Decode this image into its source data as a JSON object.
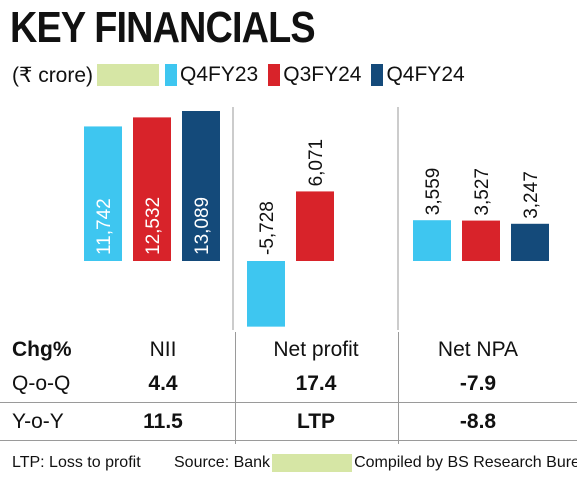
{
  "header": {
    "title": "KEY FINANCIALS",
    "unit": "(₹ crore)"
  },
  "colors": {
    "Q4FY23": "#3ec6f0",
    "Q3FY24": "#d8232a",
    "Q4FY24": "#144a7a",
    "highlight": "#d6e6a5",
    "divider": "#9a9a9a"
  },
  "chart_data": {
    "type": "bar",
    "categories": [
      "NII",
      "Net profit",
      "Net NPA"
    ],
    "series": [
      {
        "name": "Q4FY23",
        "values": [
          11742,
          -5728,
          3559
        ],
        "labels": [
          "11,742",
          "-5,728",
          "3,559"
        ]
      },
      {
        "name": "Q3FY24",
        "values": [
          12532,
          6071,
          3527
        ],
        "labels": [
          "12,532",
          "6,071",
          "3,527"
        ]
      },
      {
        "name": "Q4FY24",
        "values": [
          13089,
          null,
          3247
        ],
        "labels": [
          "13,089",
          "",
          "3,247"
        ]
      }
    ],
    "legend_position": "top",
    "grid": false
  },
  "table": {
    "header": [
      "Chg%",
      "NII",
      "Net profit",
      "Net NPA"
    ],
    "rows": [
      {
        "label": "Q-o-Q",
        "values": [
          "4.4",
          "17.4",
          "-7.9"
        ]
      },
      {
        "label": "Y-o-Y",
        "values": [
          "11.5",
          "LTP",
          "-8.8"
        ]
      }
    ]
  },
  "footer": {
    "note": "LTP: Loss to profit",
    "source_prefix": "Source: Bank",
    "source_suffix": "Compiled by BS Research Bureau"
  }
}
